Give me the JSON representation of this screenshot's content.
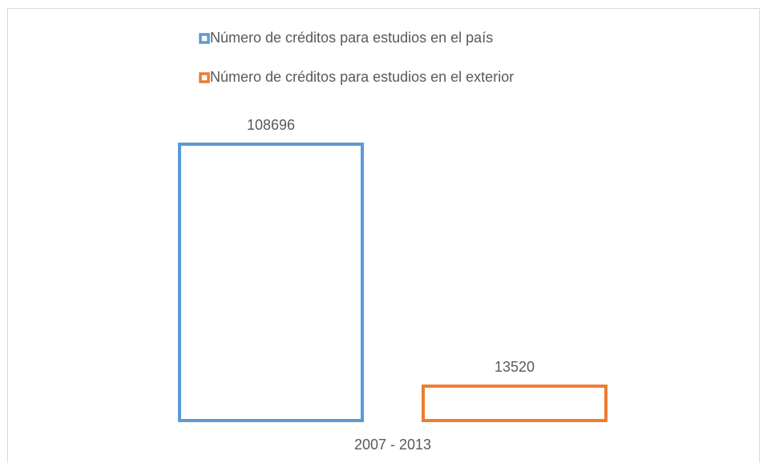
{
  "chart_data": {
    "type": "bar",
    "categories": [
      "2007 - 2013"
    ],
    "series": [
      {
        "name": "Número de créditos para estudios en el país",
        "color": "#5b9bd5",
        "values": [
          108696
        ]
      },
      {
        "name": "Número de créditos para estudios en el exterior",
        "color": "#ed7d31",
        "values": [
          13520
        ]
      }
    ],
    "legend": "top"
  }
}
